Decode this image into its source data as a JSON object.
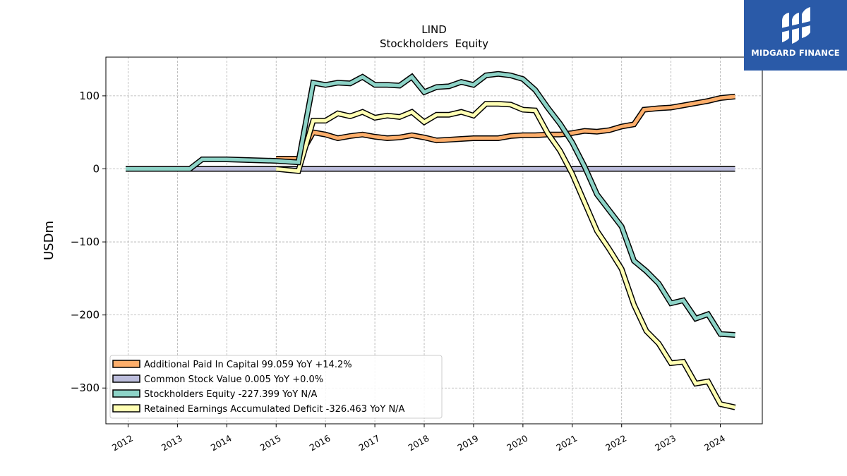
{
  "brand": {
    "name": "MIDGARD FINANCE",
    "color": "#2a5aa8"
  },
  "chart_data": {
    "type": "line",
    "title": "LIND",
    "subtitle": "Stockholders  Equity",
    "ylabel": "USDm",
    "xlabel": "",
    "xlim": [
      2011.55,
      2024.85
    ],
    "ylim": [
      -349,
      153
    ],
    "yticks": [
      100,
      0,
      -100,
      -200,
      -300
    ],
    "ytick_labels": [
      "100",
      "0",
      "−100",
      "−200",
      "−300"
    ],
    "xticks": [
      2012,
      2013,
      2014,
      2015,
      2016,
      2017,
      2018,
      2019,
      2020,
      2021,
      2022,
      2023,
      2024
    ],
    "xtick_labels": [
      "2012",
      "2013",
      "2014",
      "2015",
      "2016",
      "2017",
      "2018",
      "2019",
      "2020",
      "2021",
      "2022",
      "2023",
      "2024"
    ],
    "grid": true,
    "legend_position": "lower-left",
    "series": [
      {
        "name": "Additional Paid In Capital  99.059 YoY +14.2%",
        "color": "#fdae6b",
        "points": [
          [
            2015.0,
            14
          ],
          [
            2015.45,
            14
          ],
          [
            2015.75,
            50
          ],
          [
            2016.0,
            47
          ],
          [
            2016.25,
            42
          ],
          [
            2016.5,
            45
          ],
          [
            2016.75,
            47
          ],
          [
            2017.0,
            44
          ],
          [
            2017.25,
            42
          ],
          [
            2017.5,
            43
          ],
          [
            2017.75,
            46
          ],
          [
            2018.0,
            43
          ],
          [
            2018.25,
            39
          ],
          [
            2018.5,
            40
          ],
          [
            2018.75,
            41
          ],
          [
            2019.0,
            42
          ],
          [
            2019.25,
            42
          ],
          [
            2019.5,
            42
          ],
          [
            2019.75,
            45
          ],
          [
            2020.0,
            46
          ],
          [
            2020.25,
            46
          ],
          [
            2020.5,
            47
          ],
          [
            2020.75,
            47
          ],
          [
            2021.0,
            49
          ],
          [
            2021.25,
            52
          ],
          [
            2021.5,
            51
          ],
          [
            2021.75,
            53
          ],
          [
            2022.0,
            58
          ],
          [
            2022.25,
            61
          ],
          [
            2022.45,
            81
          ],
          [
            2022.75,
            83
          ],
          [
            2023.0,
            84
          ],
          [
            2023.25,
            87
          ],
          [
            2023.5,
            90
          ],
          [
            2023.75,
            93
          ],
          [
            2024.0,
            97
          ],
          [
            2024.3,
            99.059
          ]
        ]
      },
      {
        "name": "Common Stock Value  0.005 YoY +0.0%",
        "color": "#bcbddc",
        "points": [
          [
            2011.95,
            0.005
          ],
          [
            2024.3,
            0.005
          ]
        ]
      },
      {
        "name": "Stockholders Equity  -227.399 YoY N/A",
        "color": "#8dd3c7",
        "points": [
          [
            2011.95,
            0
          ],
          [
            2012.5,
            0
          ],
          [
            2012.75,
            0
          ],
          [
            2013.0,
            0
          ],
          [
            2013.25,
            0
          ],
          [
            2013.5,
            13
          ],
          [
            2014.0,
            13
          ],
          [
            2014.5,
            12
          ],
          [
            2015.0,
            11
          ],
          [
            2015.45,
            9
          ],
          [
            2015.75,
            118
          ],
          [
            2016.0,
            115
          ],
          [
            2016.25,
            118
          ],
          [
            2016.5,
            117
          ],
          [
            2016.75,
            126
          ],
          [
            2017.0,
            115
          ],
          [
            2017.25,
            115
          ],
          [
            2017.5,
            114
          ],
          [
            2017.75,
            126
          ],
          [
            2018.0,
            105
          ],
          [
            2018.25,
            112
          ],
          [
            2018.5,
            113
          ],
          [
            2018.75,
            119
          ],
          [
            2019.0,
            115
          ],
          [
            2019.25,
            128
          ],
          [
            2019.5,
            130
          ],
          [
            2019.75,
            128
          ],
          [
            2020.0,
            123
          ],
          [
            2020.25,
            108
          ],
          [
            2020.5,
            84
          ],
          [
            2020.75,
            62
          ],
          [
            2021.0,
            36
          ],
          [
            2021.25,
            3
          ],
          [
            2021.5,
            -35
          ],
          [
            2021.75,
            -57
          ],
          [
            2022.0,
            -79
          ],
          [
            2022.25,
            -126
          ],
          [
            2022.5,
            -140
          ],
          [
            2022.75,
            -157
          ],
          [
            2023.0,
            -184
          ],
          [
            2023.25,
            -180
          ],
          [
            2023.5,
            -205
          ],
          [
            2023.75,
            -199
          ],
          [
            2024.0,
            -226
          ],
          [
            2024.3,
            -227.399
          ]
        ]
      },
      {
        "name": "Retained Earnings Accumulated Deficit  -326.463 YoY N/A",
        "color": "#ffffb3",
        "points": [
          [
            2015.0,
            0
          ],
          [
            2015.45,
            -3
          ],
          [
            2015.75,
            66
          ],
          [
            2016.0,
            66
          ],
          [
            2016.25,
            76
          ],
          [
            2016.5,
            72
          ],
          [
            2016.75,
            78
          ],
          [
            2017.0,
            70
          ],
          [
            2017.25,
            73
          ],
          [
            2017.5,
            71
          ],
          [
            2017.75,
            78
          ],
          [
            2018.0,
            64
          ],
          [
            2018.25,
            74
          ],
          [
            2018.5,
            74
          ],
          [
            2018.75,
            78
          ],
          [
            2019.0,
            73
          ],
          [
            2019.25,
            89
          ],
          [
            2019.5,
            89
          ],
          [
            2019.75,
            88
          ],
          [
            2020.0,
            81
          ],
          [
            2020.25,
            80
          ],
          [
            2020.5,
            49
          ],
          [
            2020.75,
            25
          ],
          [
            2021.0,
            -7
          ],
          [
            2021.25,
            -46
          ],
          [
            2021.5,
            -85
          ],
          [
            2021.75,
            -110
          ],
          [
            2022.0,
            -137
          ],
          [
            2022.25,
            -186
          ],
          [
            2022.5,
            -222
          ],
          [
            2022.75,
            -239
          ],
          [
            2023.0,
            -266
          ],
          [
            2023.25,
            -264
          ],
          [
            2023.5,
            -294
          ],
          [
            2023.75,
            -291
          ],
          [
            2024.0,
            -322
          ],
          [
            2024.3,
            -326.463
          ]
        ]
      }
    ]
  }
}
